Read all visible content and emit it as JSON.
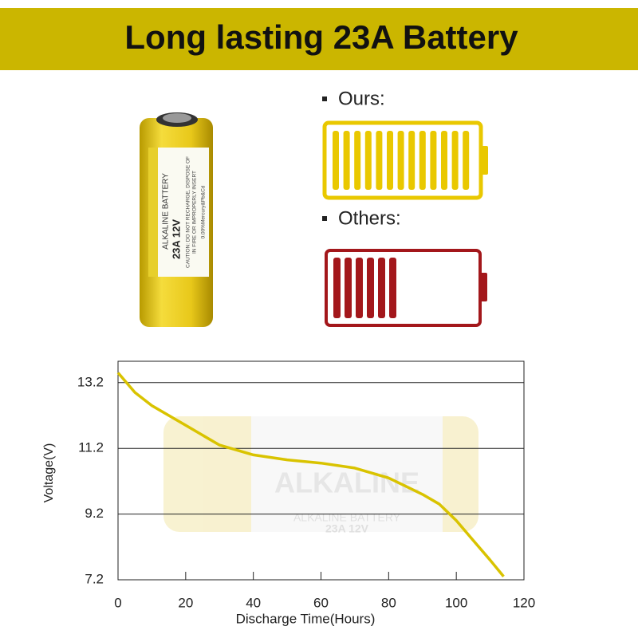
{
  "header": {
    "title": "Long lasting 23A Battery"
  },
  "product": {
    "labels": [
      "ALKALINE BATTERY",
      "23A 12V",
      "CAUTION: DO NOT RECHARGE, DISPOSE OF",
      "IN FIRE OR IMPROPERLY INSERT",
      "0.00%Mercury&Pb&Cd"
    ]
  },
  "comparison": {
    "ours": "Ours:",
    "others": "Others:"
  },
  "watermark": {
    "labels": [
      "ALKALINE",
      "ALKALINE BATTERY",
      "23A 12V"
    ]
  },
  "chart_data": {
    "type": "line",
    "x_label": "Discharge Time(Hours)",
    "y_label": "Voltage(V)",
    "x": [
      0,
      5,
      10,
      20,
      30,
      40,
      50,
      60,
      70,
      80,
      90,
      95,
      100,
      105,
      110,
      114
    ],
    "values": [
      13.5,
      12.9,
      12.5,
      11.9,
      11.3,
      11.0,
      10.85,
      10.75,
      10.6,
      10.3,
      9.8,
      9.5,
      9.0,
      8.4,
      7.8,
      7.3
    ],
    "color": "#d9c300",
    "xlim": [
      0,
      120
    ],
    "xticks": [
      0,
      20,
      40,
      60,
      80,
      100,
      120
    ],
    "ylim": [
      7.2,
      13.85
    ],
    "yticks": [
      7.2,
      9.2,
      11.2,
      13.2
    ],
    "grid": true
  }
}
